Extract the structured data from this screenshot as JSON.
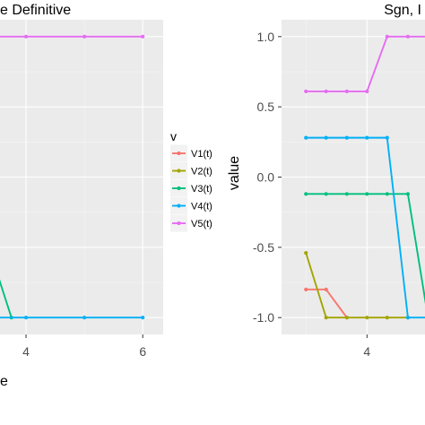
{
  "chart_data": [
    {
      "type": "line",
      "title": "e Definitive",
      "xlabel": "e",
      "ylabel": "",
      "x_ticks": [
        "4",
        "6"
      ],
      "y_ticks": [],
      "xlim": [
        3.4,
        6.35
      ],
      "ylim": [
        -1.12,
        1.12
      ],
      "grid": true,
      "series": [
        {
          "name": "V1(t)",
          "color": "#F8766D",
          "x": [],
          "y": []
        },
        {
          "name": "V2(t)",
          "color": "#A3A500",
          "x": [],
          "y": []
        },
        {
          "name": "V3(t)",
          "color": "#00BF7D",
          "x": [
            3.3,
            3.75
          ],
          "y": [
            -0.42,
            -1.0
          ]
        },
        {
          "name": "V4(t)",
          "color": "#00B0F6",
          "x": [
            3.3,
            4,
            5,
            6
          ],
          "y": [
            -1.0,
            -1.0,
            -1.0,
            -1.0
          ]
        },
        {
          "name": "V5(t)",
          "color": "#E76BF3",
          "x": [
            3.3,
            4,
            5,
            6
          ],
          "y": [
            1.0,
            1.0,
            1.0,
            1.0
          ]
        }
      ]
    },
    {
      "type": "line",
      "title": "Sgn, I",
      "xlabel": "",
      "ylabel": "value",
      "x_ticks": [
        "4"
      ],
      "y_ticks": [
        "1.0",
        "0.5",
        "0.0",
        "-0.5",
        "-1.0"
      ],
      "xlim": [
        2.6,
        4.95
      ],
      "ylim": [
        -1.12,
        1.12
      ],
      "grid": true,
      "series": [
        {
          "name": "V1(t)",
          "color": "#F8766D",
          "x": [
            3.0,
            3.33,
            3.67
          ],
          "y": [
            -0.8,
            -0.8,
            -1.0
          ]
        },
        {
          "name": "V2(t)",
          "color": "#A3A500",
          "x": [
            3.0,
            3.33,
            3.67,
            4.0,
            4.33,
            4.67
          ],
          "y": [
            -0.54,
            -1.0,
            -1.0,
            -1.0,
            -1.0,
            -1.0
          ]
        },
        {
          "name": "V3(t)",
          "color": "#00BF7D",
          "x": [
            3.0,
            3.33,
            3.67,
            4.0,
            4.33,
            4.67,
            5.0
          ],
          "y": [
            -0.12,
            -0.12,
            -0.12,
            -0.12,
            -0.12,
            -0.12,
            -1.0
          ]
        },
        {
          "name": "V4(t)",
          "color": "#00B0F6",
          "x": [
            3.0,
            3.33,
            3.67,
            4.0,
            4.33,
            4.67,
            5.0
          ],
          "y": [
            0.28,
            0.28,
            0.28,
            0.28,
            0.28,
            -1.0,
            -1.0
          ]
        },
        {
          "name": "V5(t)",
          "color": "#E76BF3",
          "x": [
            3.0,
            3.33,
            3.67,
            4.0,
            4.33,
            4.67,
            5.0
          ],
          "y": [
            0.61,
            0.61,
            0.61,
            0.61,
            1.0,
            1.0,
            1.0
          ]
        }
      ]
    }
  ],
  "legend": {
    "title": "v",
    "position": "right",
    "items": [
      {
        "label": "V1(t)",
        "color": "#F8766D"
      },
      {
        "label": "V2(t)",
        "color": "#A3A500"
      },
      {
        "label": "V3(t)",
        "color": "#00BF7D"
      },
      {
        "label": "V4(t)",
        "color": "#00B0F6"
      },
      {
        "label": "V5(t)",
        "color": "#E76BF3"
      }
    ]
  }
}
